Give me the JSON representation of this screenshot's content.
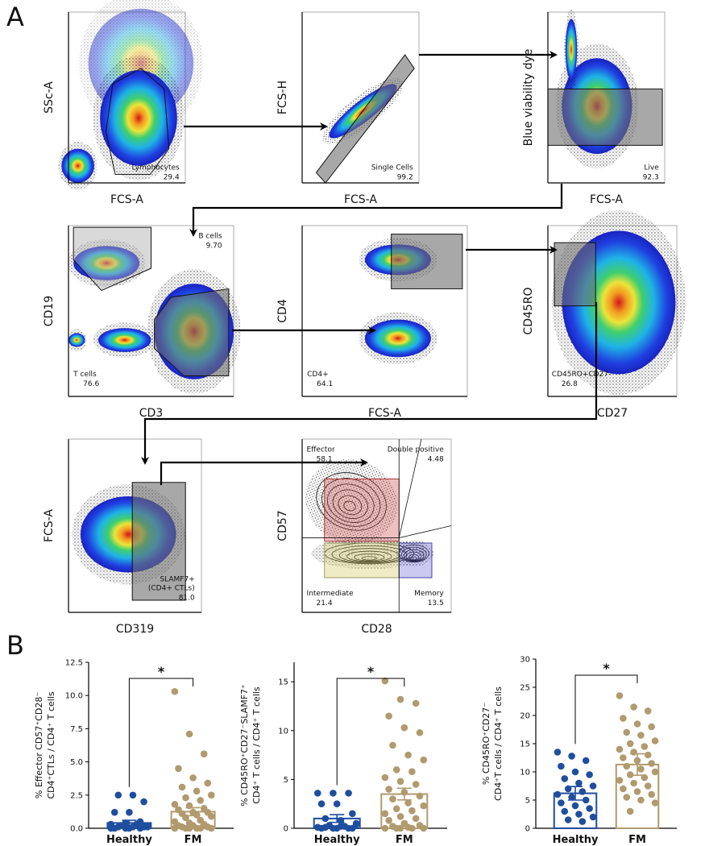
{
  "panel_a": {
    "label": "A",
    "plots": [
      {
        "x_label": "FCS-A",
        "y_label": "SSc-A",
        "gates": [
          {
            "name": "Lymphocytes",
            "value": "29.4"
          }
        ]
      },
      {
        "x_label": "FCS-A",
        "y_label": "FCS-H",
        "gates": [
          {
            "name": "Single Cells",
            "value": "99.2"
          }
        ]
      },
      {
        "x_label": "FCS-A",
        "y_label": "Blue viability dye",
        "gates": [
          {
            "name": "Live",
            "value": "92.3"
          }
        ]
      },
      {
        "x_label": "CD3",
        "y_label": "CD19",
        "gates": [
          {
            "name": "B cells",
            "value": "9.70"
          },
          {
            "name": "T cells",
            "value": "76.6"
          }
        ]
      },
      {
        "x_label": "FCS-A",
        "y_label": "CD4",
        "gates": [
          {
            "name": "CD4+",
            "value": "64.1"
          }
        ]
      },
      {
        "x_label": "CD27",
        "y_label": "CD45RO",
        "gates": [
          {
            "name": "CD45RO+CD27-",
            "value": "26.8"
          }
        ]
      },
      {
        "x_label": "CD319",
        "y_label": "FCS-A",
        "gates": [
          {
            "name": [
              "SLAMF7+",
              "(CD4+ CTLs)"
            ],
            "value": "81.0"
          }
        ]
      },
      {
        "x_label": "CD28",
        "y_label": "CD57",
        "gates": [
          {
            "name": "Effector",
            "value": "58.1"
          },
          {
            "name": "Double positive",
            "value": "4.48"
          },
          {
            "name": "Intermediate",
            "value": "21.4"
          },
          {
            "name": "Memory",
            "value": "13.5"
          }
        ]
      }
    ]
  },
  "panel_b": {
    "label": "B",
    "charts": [
      {
        "y_label": [
          "% Effector CD57⁺CD28⁻",
          "CD4⁺CTLs / CD4⁺ T cells"
        ],
        "significance": "*",
        "ylim": [
          0,
          12.5
        ],
        "yticks": [
          {
            "value": 0,
            "label": "0.0"
          },
          2.5,
          {
            "value": 5,
            "label": "5.0"
          },
          7.5,
          {
            "value": 10,
            "label": "10.0"
          },
          12.5
        ],
        "series": [
          {
            "name": "Healthy",
            "color": "#1f4e9e",
            "mean": 0.4,
            "sem": 0.2,
            "values": [
              0,
              0,
              0,
              0,
              0,
              0.1,
              0.1,
              0.1,
              0.2,
              0.2,
              0.3,
              0.3,
              0.4,
              0.5,
              1.2,
              1.2,
              2.0,
              2.5,
              2.5,
              0.1
            ]
          },
          {
            "name": "FM",
            "color": "#b09a6e",
            "mean": 1.25,
            "sem": 0.3,
            "values": [
              10.3,
              7.1,
              5.6,
              4.5,
              3.8,
              3.4,
              3.1,
              2.8,
              2.5,
              2.3,
              2.1,
              1.8,
              1.7,
              1.5,
              1.4,
              1.2,
              1.2,
              1.1,
              1.0,
              0.9,
              0.8,
              0.6,
              0.5,
              0.4,
              0.3,
              0.2,
              0.2,
              0.1,
              0.1,
              0,
              0,
              0,
              0,
              0,
              0
            ]
          }
        ]
      },
      {
        "y_label": [
          "% CD45RO⁺CD27⁻SLAMF7⁺",
          "CD4⁺ T cells / CD4⁺ T cells"
        ],
        "significance": "*",
        "ylim": [
          0,
          17
        ],
        "yticks": [
          0,
          5,
          10,
          15
        ],
        "series": [
          {
            "name": "Healthy",
            "color": "#1f4e9e",
            "mean": 1.0,
            "sem": 0.4,
            "values": [
              3.6,
              3.6,
              3.6,
              2.5,
              2.5,
              1.5,
              1.0,
              0.8,
              0.5,
              0.3,
              0.2,
              0.1,
              0,
              0,
              0,
              0,
              0,
              0.1,
              0.2,
              0.4
            ]
          },
          {
            "name": "FM",
            "color": "#b09a6e",
            "mean": 3.5,
            "sem": 0.6,
            "values": [
              15.1,
              13.2,
              12.8,
              11.5,
              10.3,
              9.8,
              8.5,
              7.5,
              7.0,
              6.0,
              5.8,
              5.2,
              4.8,
              4.5,
              4.0,
              3.7,
              3.3,
              3.0,
              2.6,
              2.3,
              2.0,
              1.8,
              1.5,
              1.2,
              1.0,
              0.8,
              0.5,
              0.3,
              0.2,
              0.1,
              0,
              0,
              0,
              0,
              0
            ]
          }
        ]
      },
      {
        "y_label": [
          "% CD45RO⁺CD27⁻",
          "CD4⁺T cells / CD4⁺ T cells"
        ],
        "significance": "*",
        "ylim": [
          0,
          30
        ],
        "yticks": [
          0,
          5,
          10,
          15,
          20,
          25,
          30
        ],
        "series": [
          {
            "name": "Healthy",
            "color": "#1f4e9e",
            "mean": 6.2,
            "sem": 1.2,
            "values": [
              13.5,
              12.8,
              12.0,
              11.0,
              10.0,
              9.5,
              8.8,
              8.0,
              7.5,
              7.0,
              6.5,
              6.0,
              5.5,
              5.0,
              4.5,
              4.0,
              3.5,
              3.0,
              2.5,
              2.0,
              1.5,
              1.2
            ]
          },
          {
            "name": "FM",
            "color": "#b09a6e",
            "mean": 11.3,
            "sem": 1.9,
            "values": [
              23.5,
              21.5,
              20.8,
              19.5,
              18.5,
              18.0,
              17.0,
              16.5,
              15.5,
              15.0,
              14.5,
              14.0,
              13.5,
              13.0,
              12.5,
              12.0,
              11.5,
              11.0,
              10.5,
              10.0,
              9.5,
              9.0,
              8.5,
              8.0,
              7.5,
              7.0,
              6.5,
              6.0,
              5.5,
              5.0,
              4.5,
              3.0
            ]
          }
        ]
      }
    ]
  }
}
